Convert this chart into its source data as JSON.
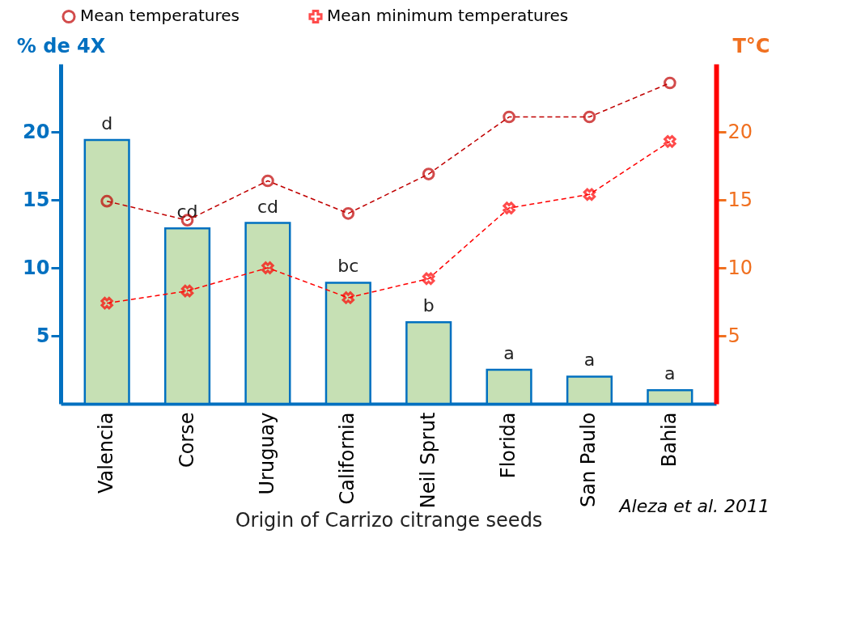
{
  "chart_data": {
    "type": "bar",
    "xlabel": "Origin of Carrizo citrange seeds",
    "ylabel": "% de 4X",
    "y2label": "T°C",
    "annotations": [
      "Aleza et al. 2011"
    ],
    "categories": [
      "Valencia",
      "Corse",
      "Uruguay",
      "California",
      "Neil Sprut",
      "Florida",
      "San Paulo",
      "Bahia"
    ],
    "ylim": [
      0,
      25
    ],
    "yticks": [
      5,
      10,
      15,
      20
    ],
    "y2lim": [
      0,
      25
    ],
    "y2ticks": [
      5,
      10,
      15,
      20
    ],
    "grid": false,
    "legend": "top",
    "series": [
      {
        "color": "#c6e0b4",
        "values": [
          19.4,
          12.9,
          13.3,
          8.9,
          6.0,
          2.5,
          2.0,
          1.0
        ],
        "value_labels": [
          "d",
          "cd",
          "cd",
          "bc",
          "b",
          "a",
          "a",
          "a"
        ]
      },
      {
        "type": "line",
        "name": "Mean temperatures",
        "axis": "y2",
        "color": "#c00000",
        "marker": "circle",
        "line_style": "dashed",
        "values": [
          14.9,
          13.5,
          16.4,
          14.0,
          16.9,
          21.1,
          21.1,
          23.6
        ]
      },
      {
        "type": "line",
        "name": "Mean minimum temperatures",
        "axis": "y2",
        "color": "#ff0000",
        "marker": "cross",
        "line_style": "dashed",
        "values": [
          7.4,
          8.3,
          10.0,
          7.8,
          9.2,
          14.4,
          15.4,
          19.3
        ]
      }
    ]
  }
}
